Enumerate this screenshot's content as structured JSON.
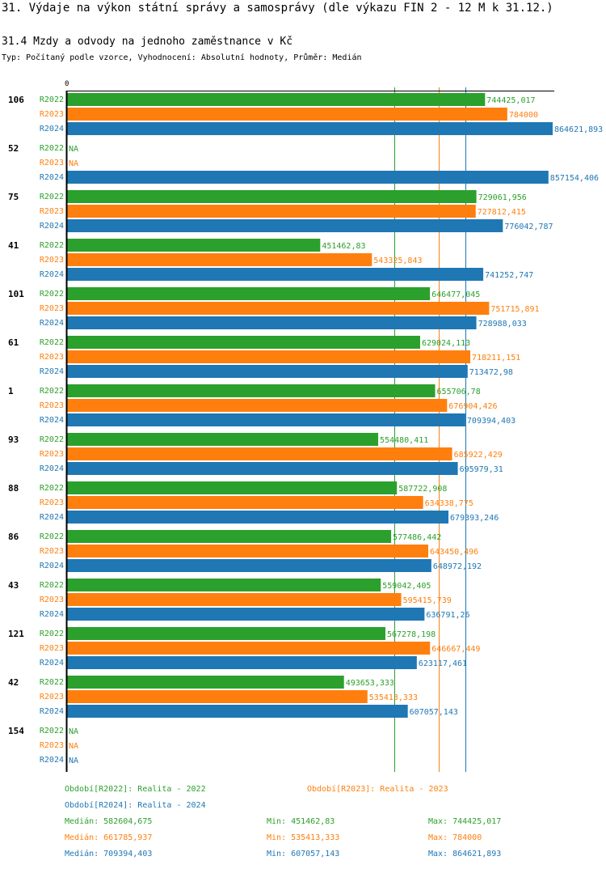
{
  "header": {
    "title": "31. Výdaje na výkon státní správy a samosprávy (dle výkazu FIN 2 - 12 M k 31.12.)",
    "subtitle": "31.4 Mzdy a odvody na jednoho zaměstnance v Kč",
    "meta": "Typ: Počítaný podle vzorce, Vyhodnocení: Absolutní hodnoty, Průměr: Medián"
  },
  "chart_data": {
    "type": "bar",
    "orientation": "horizontal",
    "title": "31.4 Mzdy a odvody na jednoho zaměstnance v Kč",
    "xlabel": "",
    "ylabel": "",
    "x_tick_labels": [
      "0"
    ],
    "xlim": [
      0,
      864621.893
    ],
    "categories": [
      "106",
      "52",
      "75",
      "41",
      "101",
      "61",
      "1",
      "93",
      "88",
      "86",
      "43",
      "121",
      "42",
      "154"
    ],
    "series": [
      {
        "name": "R2022",
        "color": "#2ca02c",
        "values": [
          744425.017,
          null,
          729061.956,
          451462.83,
          646477.045,
          629024.113,
          655706.78,
          554480.411,
          587722.908,
          577486.442,
          559042.405,
          567278.198,
          493653.333,
          null
        ],
        "labels": [
          "744425,017",
          "NA",
          "729061,956",
          "451462,83",
          "646477,045",
          "629024,113",
          "655706,78",
          "554480,411",
          "587722,908",
          "577486,442",
          "559042,405",
          "567278,198",
          "493653,333",
          "NA"
        ]
      },
      {
        "name": "R2023",
        "color": "#ff7f0e",
        "values": [
          784000,
          null,
          727812.415,
          543325.843,
          751715.891,
          718211.151,
          676904.426,
          685922.429,
          634338.775,
          643450.496,
          595415.739,
          646667.449,
          535413.333,
          null
        ],
        "labels": [
          "784000",
          "NA",
          "727812,415",
          "543325,843",
          "751715,891",
          "718211,151",
          "676904,426",
          "685922,429",
          "634338,775",
          "643450,496",
          "595415,739",
          "646667,449",
          "535413,333",
          "NA"
        ]
      },
      {
        "name": "R2024",
        "color": "#1f77b4",
        "values": [
          864621.893,
          857154.406,
          776042.787,
          741252.747,
          728988.033,
          713472.98,
          709394.403,
          695979.31,
          679393.246,
          648972.192,
          636791.26,
          623117.461,
          607057.143,
          null
        ],
        "labels": [
          "864621,893",
          "857154,406",
          "776042,787",
          "741252,747",
          "728988,033",
          "713472,98",
          "709394,403",
          "695979,31",
          "679393,246",
          "648972,192",
          "636791,26",
          "623117,461",
          "607057,143",
          "NA"
        ]
      }
    ],
    "reference_lines": [
      {
        "series": "R2022",
        "type": "median",
        "value": 582604.675
      },
      {
        "series": "R2023",
        "type": "median",
        "value": 661785.937
      },
      {
        "series": "R2024",
        "type": "median",
        "value": 709394.403
      }
    ],
    "legend": {
      "placement": "bottom",
      "entries": [
        {
          "text": "Období[R2022]: Realita - 2022",
          "color": "#2ca02c"
        },
        {
          "text": "Období[R2023]: Realita - 2023",
          "color": "#ff7f0e"
        },
        {
          "text": "Období[R2024]: Realita - 2024",
          "color": "#1f77b4"
        }
      ]
    },
    "stats": [
      {
        "series": "R2022",
        "color": "#2ca02c",
        "median": "Medián: 582604,675",
        "min": "Min: 451462,83",
        "max": "Max: 744425,017"
      },
      {
        "series": "R2023",
        "color": "#ff7f0e",
        "median": "Medián: 661785,937",
        "min": "Min: 535413,333",
        "max": "Max: 784000"
      },
      {
        "series": "R2024",
        "color": "#1f77b4",
        "median": "Medián: 709394,403",
        "min": "Min: 607057,143",
        "max": "Max: 864621,893"
      }
    ]
  }
}
